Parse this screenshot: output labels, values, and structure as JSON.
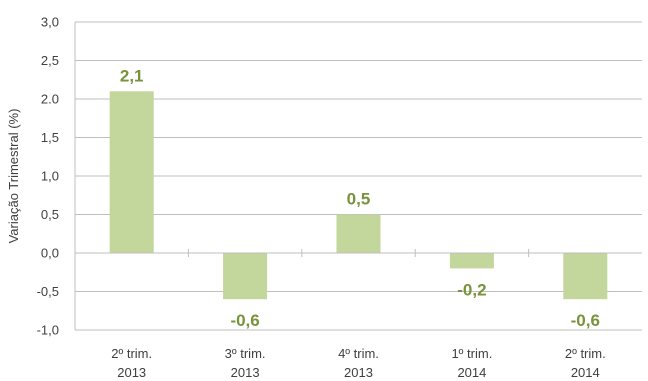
{
  "chart_data": {
    "type": "bar",
    "categories": [
      [
        "2º trim.",
        "2013"
      ],
      [
        "3º trim.",
        "2013"
      ],
      [
        "4º trim.",
        "2013"
      ],
      [
        "1º trim.",
        "2014"
      ],
      [
        "2º trim.",
        "2014"
      ]
    ],
    "values": [
      2.1,
      -0.6,
      0.5,
      -0.2,
      -0.6
    ],
    "value_labels": [
      "2,1",
      "-0,6",
      "0,5",
      "-0,2",
      "-0,6"
    ],
    "ylabel": "Variação Trimestral (%)",
    "ylim": [
      -1.0,
      3.0
    ],
    "yticks": [
      3.0,
      2.5,
      2.0,
      1.5,
      1.0,
      0.5,
      0.0,
      -0.5,
      -1.0
    ],
    "ytick_labels": [
      "3,0",
      "2,5",
      "2.0",
      "1,5",
      "1,0",
      "0,5",
      "0,0",
      "-0,5",
      "-1,0"
    ],
    "grid": true,
    "colors": {
      "bar": "#c3d69b",
      "label": "#77933c",
      "grid": "#bfbfbf",
      "axis": "#bfbfbf"
    }
  }
}
